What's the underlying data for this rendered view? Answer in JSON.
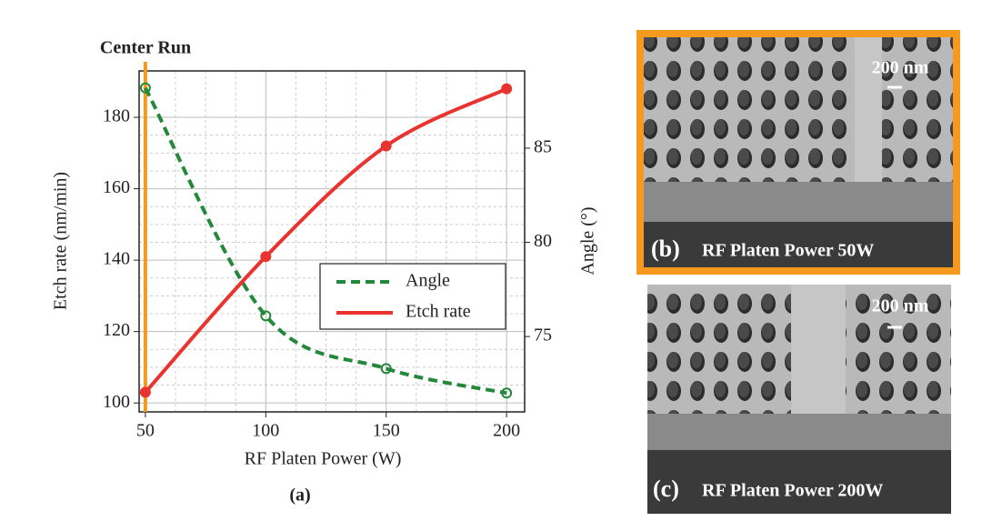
{
  "chart_data": {
    "type": "line",
    "xlabel": "RF Platen Power (W)",
    "ylabel": "Etch rate (nm/min)",
    "y2label": "Angle (°)",
    "caption": "(a)",
    "x": [
      50,
      100,
      150,
      200
    ],
    "series": [
      {
        "name": "Angle",
        "color": "#23883a",
        "axis": "y2",
        "dashed": true,
        "values": [
          88.2,
          76.1,
          73.3,
          72.0
        ]
      },
      {
        "name": "Etch rate",
        "color": "#e8332e",
        "values": [
          103,
          141,
          172,
          188
        ]
      }
    ],
    "xlim": [
      47.4,
      207.5
    ],
    "xticks": [
      50,
      100,
      150,
      200
    ],
    "ylim": [
      97.5,
      193
    ],
    "yticks": [
      100,
      120,
      140,
      160,
      180
    ],
    "y2lim": [
      71,
      89.1
    ],
    "y2ticks": [
      75,
      80,
      85
    ],
    "grid": true,
    "legend": "center right",
    "annotation": {
      "label": "Center Run",
      "x": 50,
      "color": "#f59a1e"
    }
  },
  "panels": [
    {
      "tag": "(b)",
      "label": "RF Platen Power 50W",
      "scale": "200 nm"
    },
    {
      "tag": "(c)",
      "label": "RF Platen Power 200W",
      "scale": "200 nm"
    }
  ]
}
